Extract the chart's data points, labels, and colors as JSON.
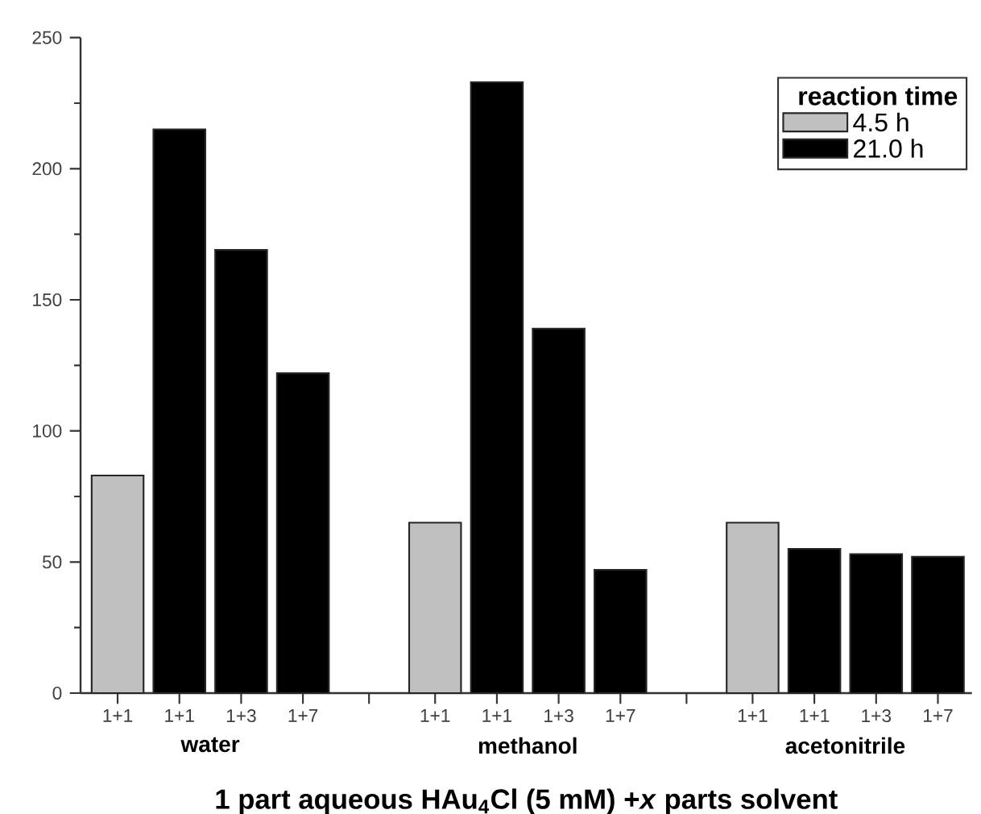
{
  "chart_data": {
    "type": "bar",
    "xlabel": "1 part aqueous HAu$_{4}$Cl (5 mM) +*x* parts solvent",
    "legend_title": "reaction time",
    "categories": [
      "1+1",
      "1+1",
      "1+3",
      "1+7",
      "1+1",
      "1+1",
      "1+3",
      "1+7",
      "1+1",
      "1+1",
      "1+3",
      "1+7"
    ],
    "series": [
      {
        "name": "4.5 h",
        "color": "#c0c0c0",
        "values": [
          83,
          null,
          null,
          null,
          65,
          null,
          null,
          null,
          65,
          null,
          null,
          null
        ]
      },
      {
        "name": "21.0 h",
        "color": "#000000",
        "values": [
          null,
          215,
          169,
          122,
          null,
          233,
          139,
          47,
          null,
          55,
          53,
          52
        ]
      }
    ],
    "annotations": [
      "water",
      "methanol",
      "acetonitrile"
    ],
    "ylim": [
      0,
      250
    ],
    "yticks": [
      0,
      50,
      100,
      150,
      200,
      250
    ],
    "legend": "top right"
  }
}
